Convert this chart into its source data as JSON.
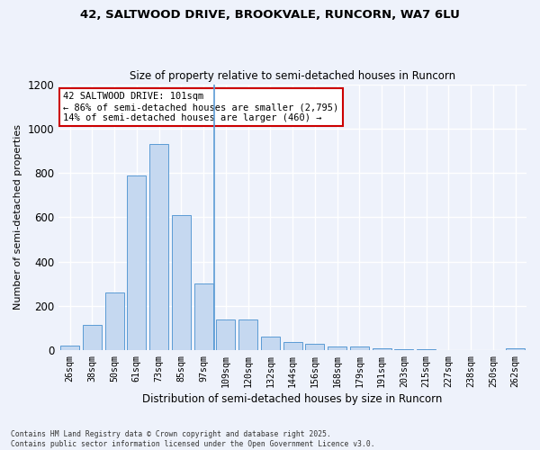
{
  "title_line1": "42, SALTWOOD DRIVE, BROOKVALE, RUNCORN, WA7 6LU",
  "title_line2": "Size of property relative to semi-detached houses in Runcorn",
  "xlabel": "Distribution of semi-detached houses by size in Runcorn",
  "ylabel": "Number of semi-detached properties",
  "categories": [
    "26sqm",
    "38sqm",
    "50sqm",
    "61sqm",
    "73sqm",
    "85sqm",
    "97sqm",
    "109sqm",
    "120sqm",
    "132sqm",
    "144sqm",
    "156sqm",
    "168sqm",
    "179sqm",
    "191sqm",
    "203sqm",
    "215sqm",
    "227sqm",
    "238sqm",
    "250sqm",
    "262sqm"
  ],
  "values": [
    20,
    115,
    260,
    790,
    930,
    610,
    300,
    140,
    140,
    62,
    38,
    28,
    15,
    15,
    7,
    4,
    4,
    2,
    1,
    1,
    8
  ],
  "bar_color": "#c5d8f0",
  "bar_edge_color": "#5b9bd5",
  "vline_bar_index": 7,
  "annotation_title": "42 SALTWOOD DRIVE: 101sqm",
  "annotation_line2": "← 86% of semi-detached houses are smaller (2,795)",
  "annotation_line3": "14% of semi-detached houses are larger (460) →",
  "annotation_box_color": "#ffffff",
  "annotation_box_edge": "#cc0000",
  "ylim": [
    0,
    1200
  ],
  "yticks": [
    0,
    200,
    400,
    600,
    800,
    1000,
    1200
  ],
  "background_color": "#eef2fb",
  "grid_color": "#ffffff",
  "footer_line1": "Contains HM Land Registry data © Crown copyright and database right 2025.",
  "footer_line2": "Contains public sector information licensed under the Open Government Licence v3.0."
}
